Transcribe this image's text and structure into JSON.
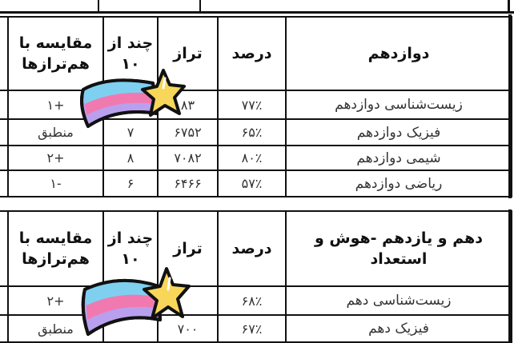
{
  "headers": {
    "comparison": "مقایسه با هم‌ترازها",
    "score_of_10": "چند از ۱۰",
    "taraz": "تراز",
    "percent": "درصد"
  },
  "table_12": {
    "title": "دوازدهم",
    "rows": [
      {
        "subject": "زیست‌شناسی دوازدهم",
        "percent": "۷۷٪",
        "taraz": "۸۳",
        "score": "",
        "comparison": "+۱"
      },
      {
        "subject": "فیزیک دوازدهم",
        "percent": "۶۵٪",
        "taraz": "۶۷۵۲",
        "score": "۷",
        "comparison": "منطبق"
      },
      {
        "subject": "شیمی دوازدهم",
        "percent": "۸۰٪",
        "taraz": "۷۰۸۲",
        "score": "۸",
        "comparison": "+۲"
      },
      {
        "subject": "ریاضی دوازدهم",
        "percent": "۵۷٪",
        "taraz": "۶۴۶۶",
        "score": "۶",
        "comparison": "-۱"
      }
    ]
  },
  "table_10_11": {
    "title": "دهم و یازدهم -هوش و استعداد",
    "rows": [
      {
        "subject": "زیست‌شناسی دهم",
        "percent": "۶۸٪",
        "taraz": "",
        "score": "",
        "comparison": "+۲"
      },
      {
        "subject": "فیزیک دهم",
        "percent": "۶۷٪",
        "taraz": "۷۰۰",
        "score": "",
        "comparison": "منطبق"
      }
    ]
  },
  "sticker": {
    "icon": "shooting-star-icon",
    "colors": [
      "#7fd0f0",
      "#f07ab0",
      "#b9a0ee",
      "#f7d65a"
    ]
  }
}
